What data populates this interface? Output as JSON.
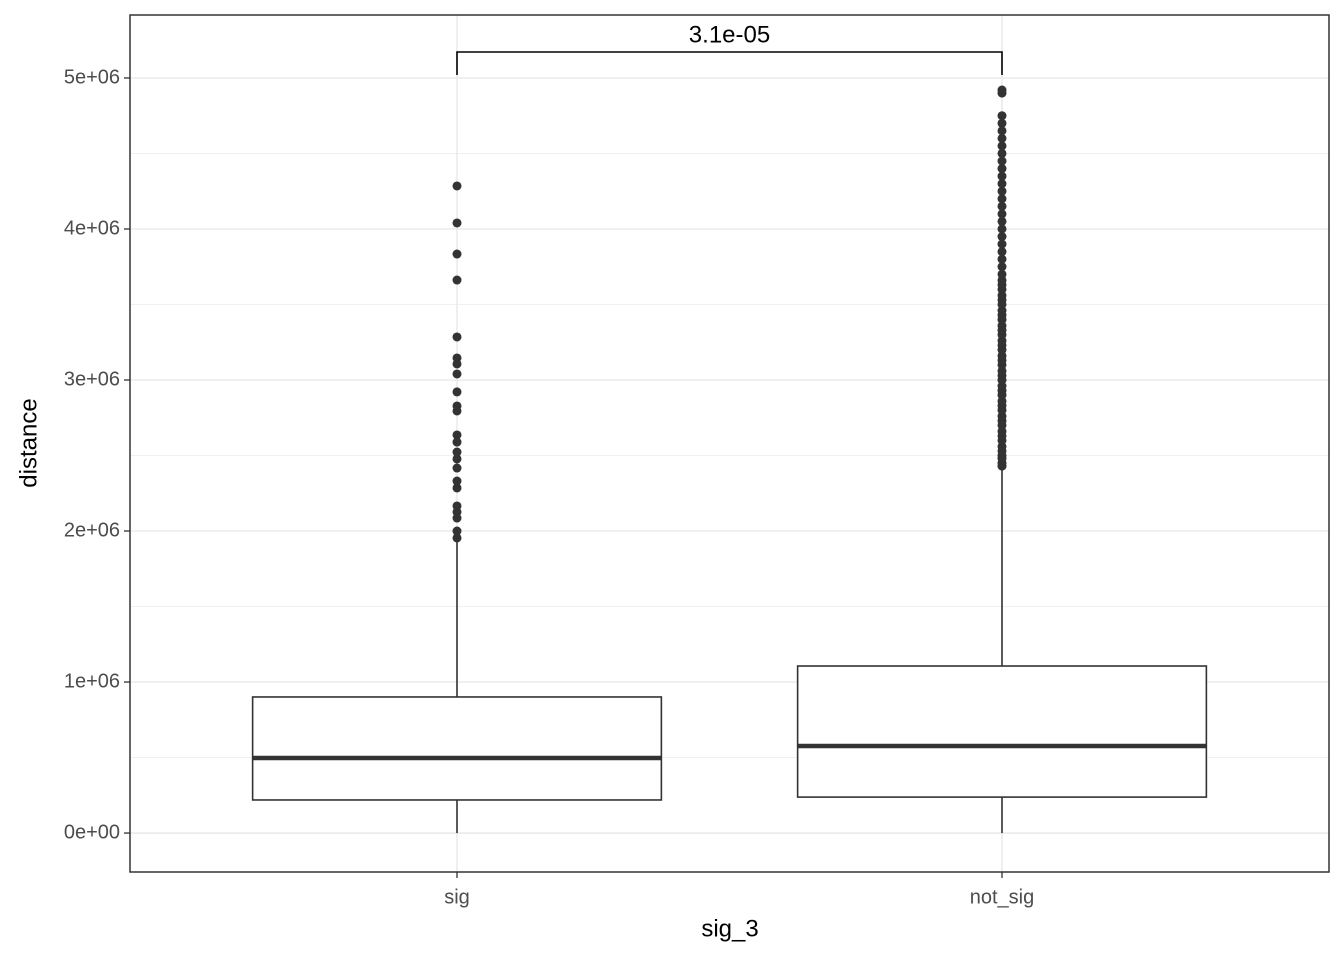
{
  "chart_data": {
    "type": "box",
    "x_label": "sig_3",
    "y_label": "distance",
    "categories": [
      "sig",
      "not_sig"
    ],
    "boxes": [
      {
        "low": 0,
        "q1": 219000,
        "median": 497000,
        "q3": 901000,
        "high": 1934000,
        "outliers": [
          4285000,
          4040000,
          3834000,
          3662000,
          3285000,
          3146000,
          3106000,
          3040000,
          2921000,
          2828000,
          2795000,
          2636000,
          2589000,
          2523000,
          2477000,
          2417000,
          2331000,
          2285000,
          2166000,
          2126000,
          2086000,
          2000000,
          1954000
        ]
      },
      {
        "low": 0,
        "q1": 238000,
        "median": 576000,
        "q3": 1106000,
        "high": 2417000,
        "outliers": [
          2430000,
          2450000,
          2480000,
          2500000,
          2530000,
          2560000,
          2600000,
          2630000,
          2660000,
          2700000,
          2730000,
          2760000,
          2800000,
          2830000,
          2860000,
          2900000,
          2930000,
          2960000,
          3000000,
          3030000,
          3060000,
          3100000,
          3130000,
          3160000,
          3200000,
          3230000,
          3260000,
          3300000,
          3330000,
          3360000,
          3400000,
          3430000,
          3460000,
          3500000,
          3530000,
          3560000,
          3600000,
          3630000,
          3660000,
          3700000,
          3750000,
          3800000,
          3850000,
          3900000,
          3950000,
          4000000,
          4050000,
          4100000,
          4150000,
          4200000,
          4250000,
          4300000,
          4350000,
          4400000,
          4450000,
          4500000,
          4550000,
          4600000,
          4650000,
          4700000,
          4750000,
          4900000,
          4920000
        ]
      }
    ],
    "annotation": "3.1e-05",
    "ylim": [
      -258000,
      5417000
    ],
    "yticks": [
      {
        "value": 0,
        "label": "0e+00"
      },
      {
        "value": 1000000,
        "label": "1e+06"
      },
      {
        "value": 2000000,
        "label": "2e+06"
      },
      {
        "value": 3000000,
        "label": "3e+06"
      },
      {
        "value": 4000000,
        "label": "4e+06"
      },
      {
        "value": 5000000,
        "label": "5e+06"
      }
    ],
    "grid": true
  }
}
